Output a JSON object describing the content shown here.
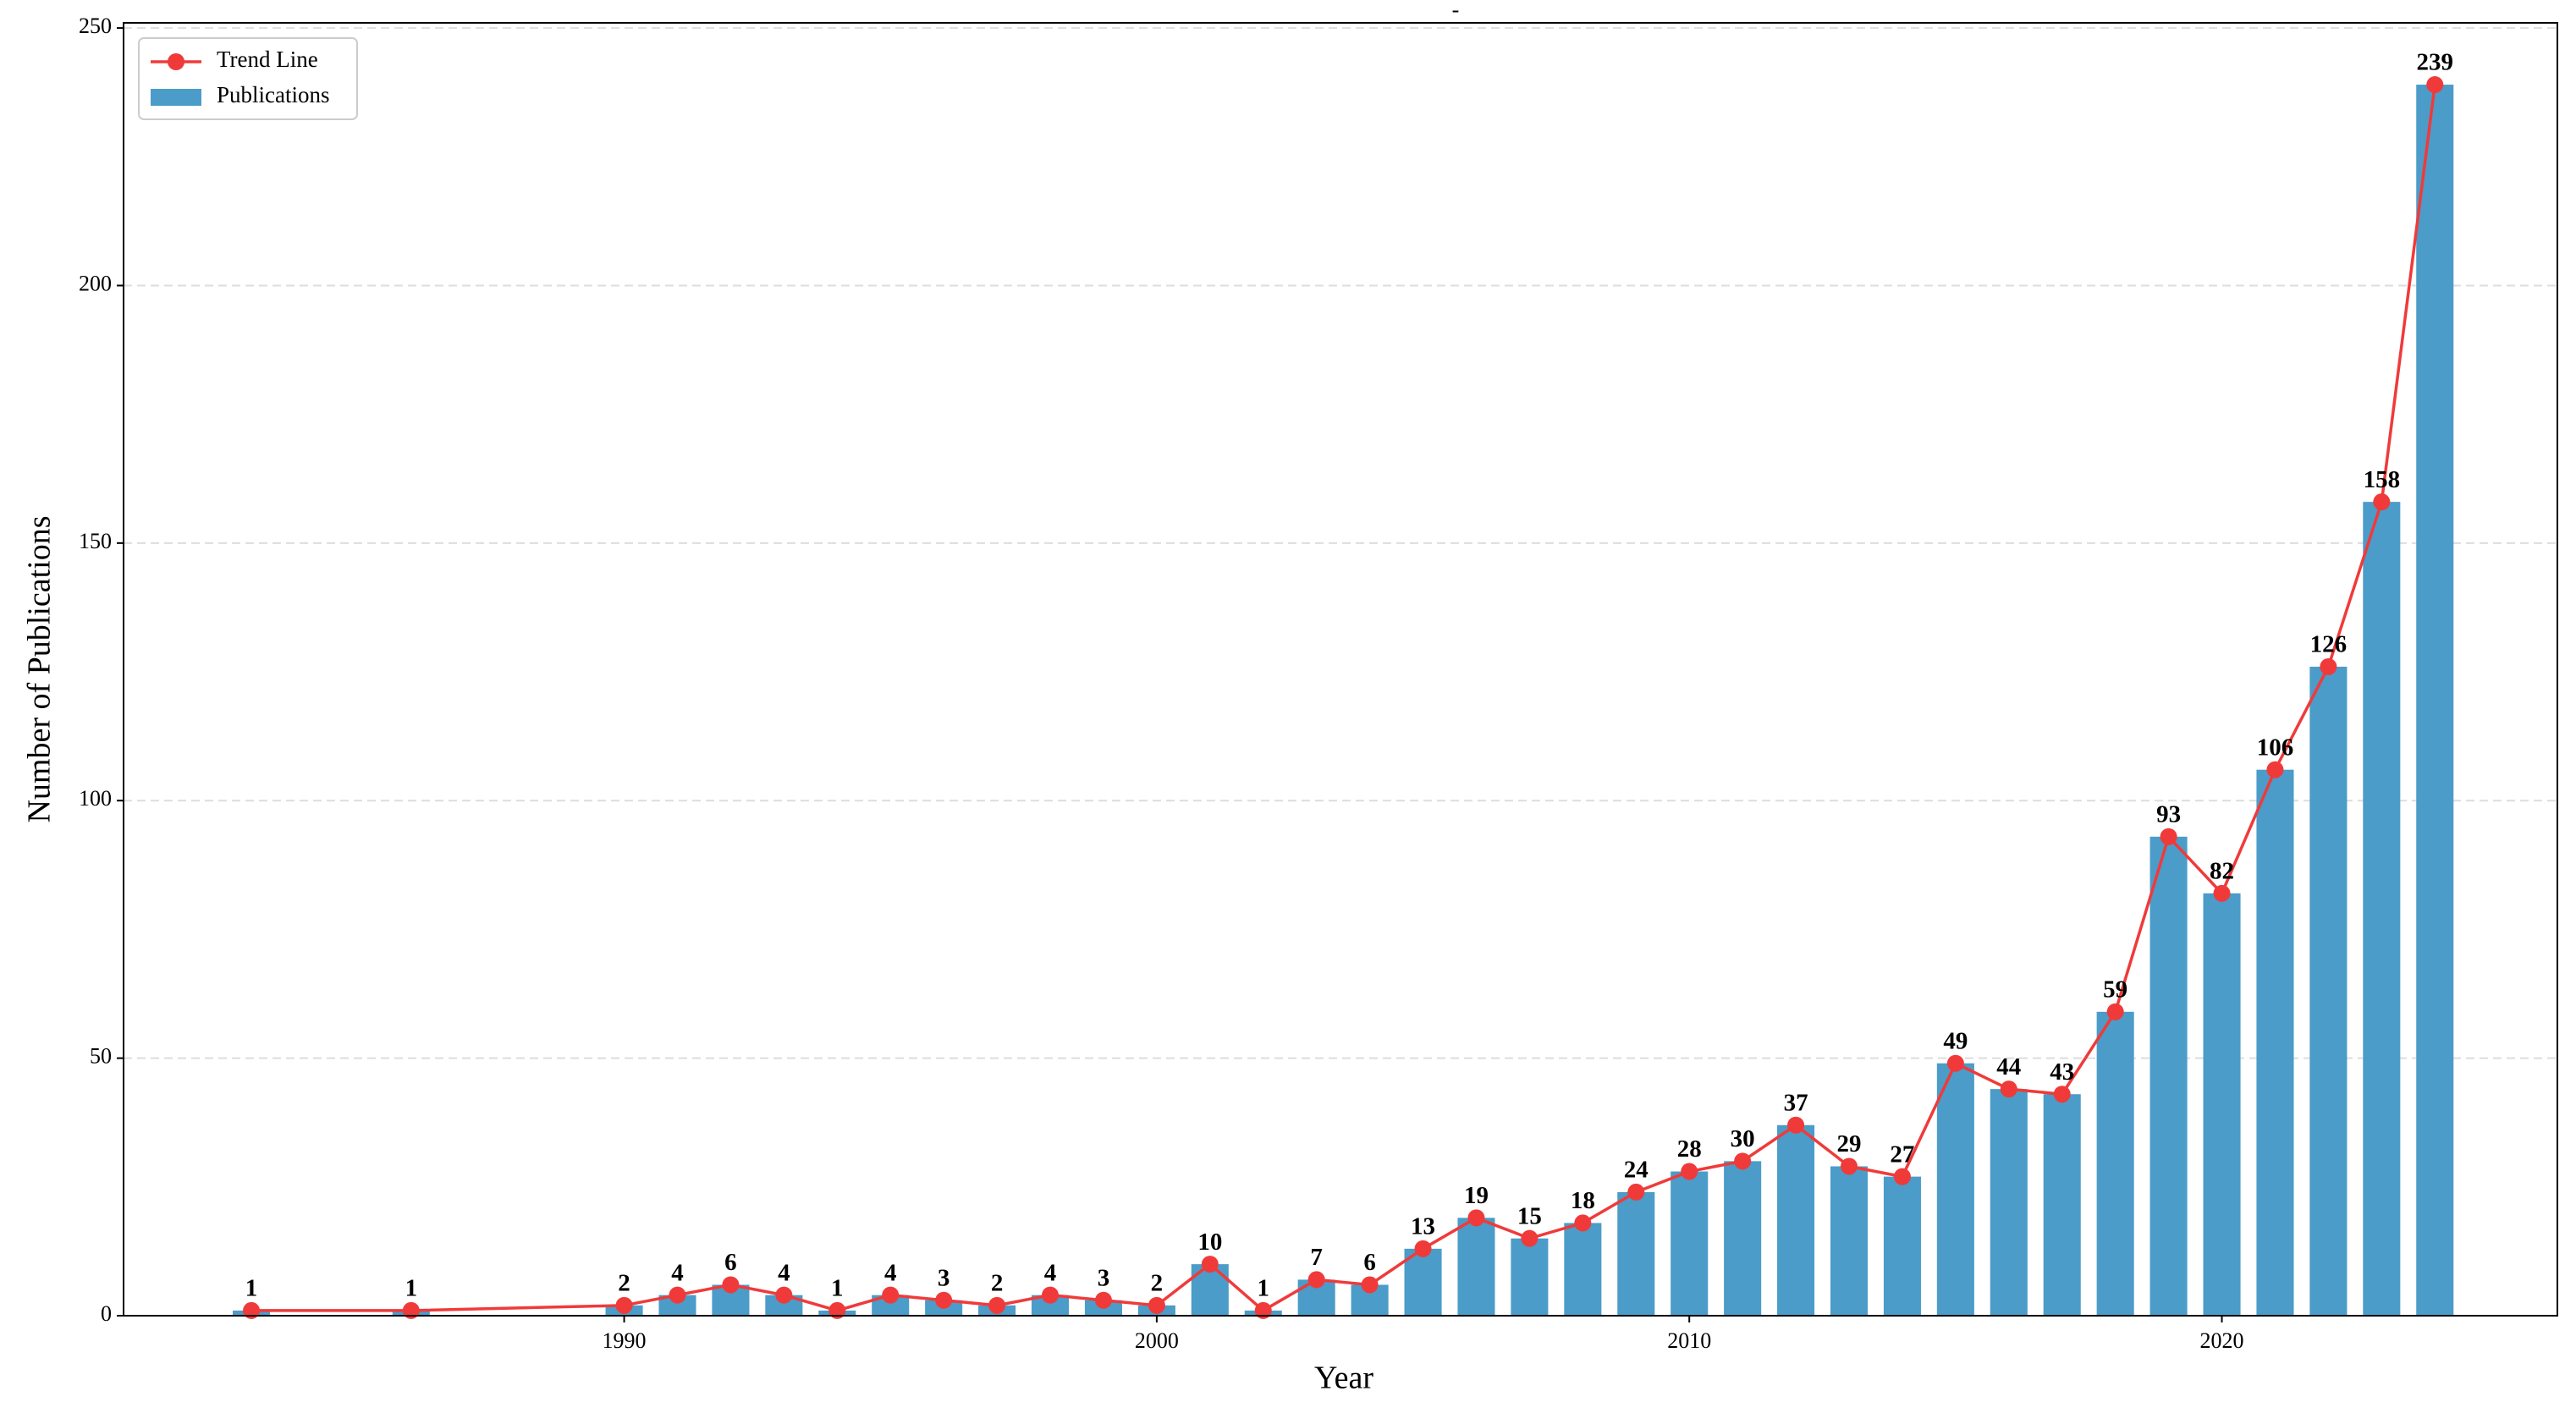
{
  "chart_data": {
    "type": "bar-line",
    "title": "-",
    "x_label": "Year",
    "y_label": "Number of Publications",
    "x": [
      1983,
      1986,
      1990,
      1991,
      1992,
      1993,
      1994,
      1995,
      1996,
      1997,
      1998,
      1999,
      2000,
      2001,
      2002,
      2003,
      2004,
      2005,
      2006,
      2007,
      2008,
      2009,
      2010,
      2011,
      2012,
      2013,
      2014,
      2015,
      2016,
      2017,
      2018,
      2019,
      2020,
      2021,
      2022,
      2023,
      2024
    ],
    "series": [
      {
        "name": "Trend Line",
        "type": "line",
        "color": "#f03a3a",
        "values": [
          1,
          1,
          2,
          4,
          6,
          4,
          1,
          4,
          3,
          2,
          4,
          3,
          2,
          10,
          1,
          7,
          6,
          13,
          19,
          15,
          18,
          24,
          28,
          30,
          37,
          29,
          27,
          49,
          44,
          43,
          59,
          93,
          82,
          106,
          126,
          158,
          239
        ]
      },
      {
        "name": "Publications",
        "type": "bar",
        "color": "#4b9cc8",
        "values": [
          1,
          1,
          2,
          4,
          6,
          4,
          1,
          4,
          3,
          2,
          4,
          3,
          2,
          10,
          1,
          7,
          6,
          13,
          19,
          15,
          18,
          24,
          28,
          30,
          37,
          29,
          27,
          49,
          44,
          43,
          59,
          93,
          82,
          106,
          126,
          158,
          239
        ]
      }
    ],
    "xlim": [
      1980.6,
      2026.3
    ],
    "xticks": [
      1990,
      2000,
      2010,
      2020
    ],
    "ylim": [
      0,
      251
    ],
    "yticks": [
      0,
      50,
      100,
      150,
      200,
      250
    ],
    "grid": true,
    "legend": "upper left"
  }
}
